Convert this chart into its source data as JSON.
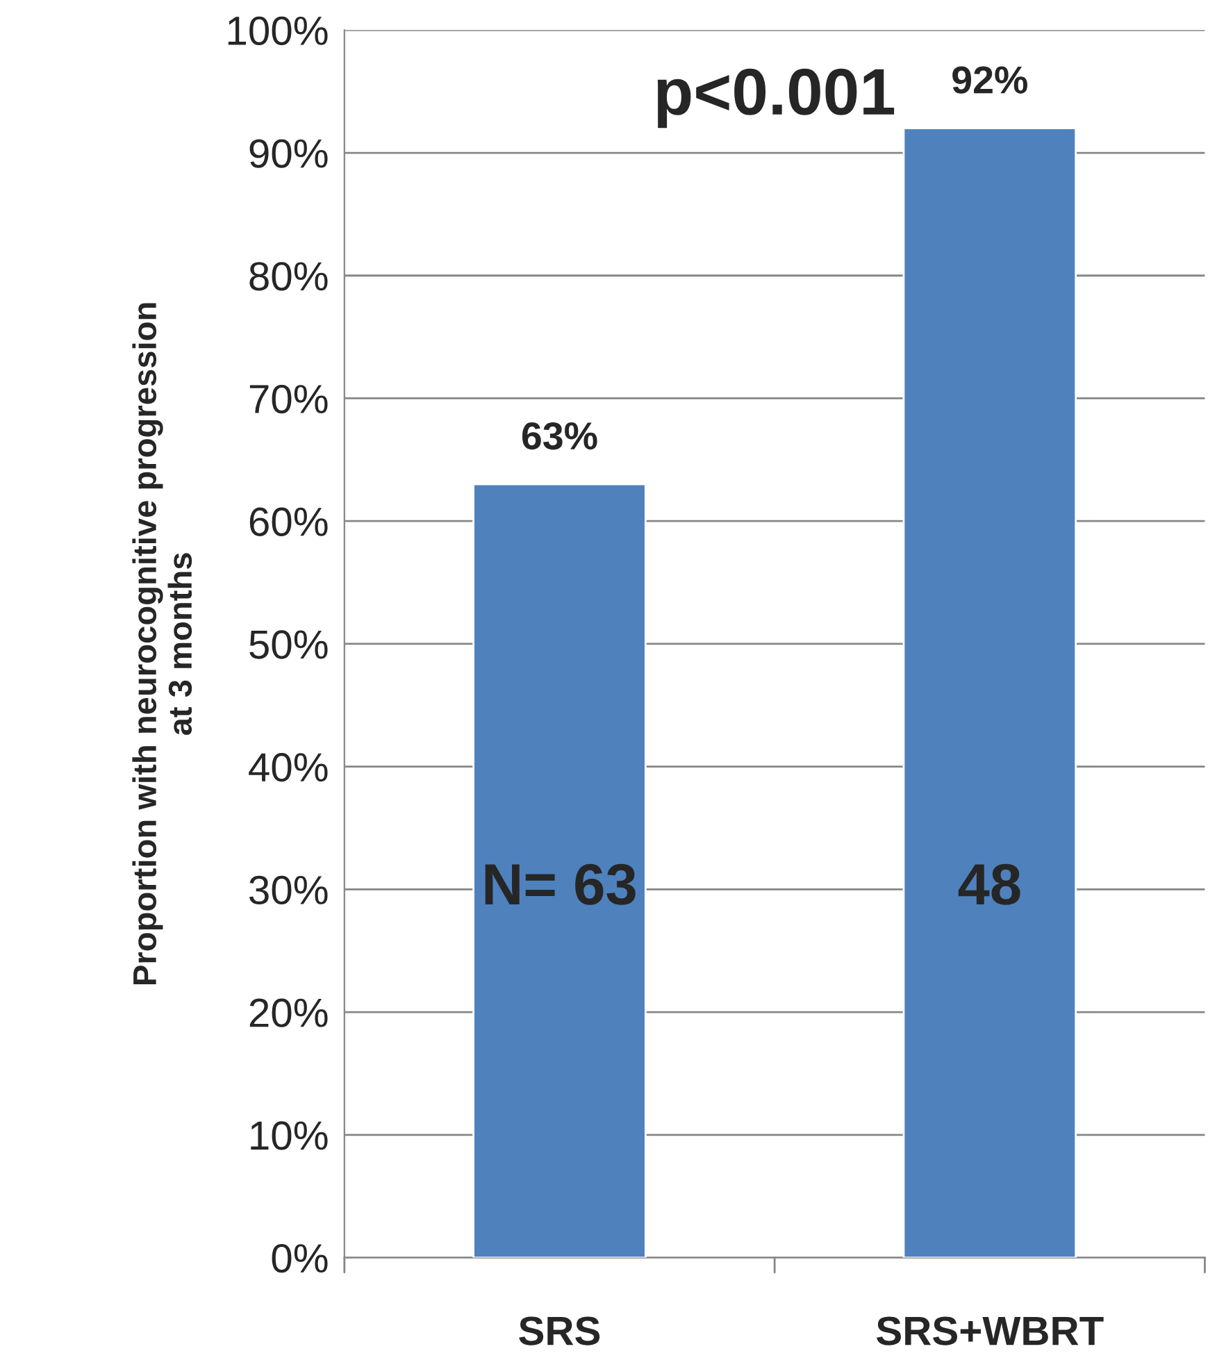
{
  "chart_data": {
    "type": "bar",
    "ylabel": "Proportion with neurocognitive progression\nat 3 months",
    "categories": [
      "SRS",
      "SRS+WBRT"
    ],
    "values": [
      63,
      92
    ],
    "value_labels": [
      "63%",
      "92%"
    ],
    "color": "#4f81bd",
    "ylim": [
      0,
      100
    ],
    "yticks": [
      {
        "value": 0,
        "label": "0%"
      },
      {
        "value": 10,
        "label": "10%"
      },
      {
        "value": 20,
        "label": "20%"
      },
      {
        "value": 30,
        "label": "30%"
      },
      {
        "value": 40,
        "label": "40%"
      },
      {
        "value": 50,
        "label": "50%"
      },
      {
        "value": 60,
        "label": "60%"
      },
      {
        "value": 70,
        "label": "70%"
      },
      {
        "value": 80,
        "label": "80%"
      },
      {
        "value": 90,
        "label": "90%"
      },
      {
        "value": 100,
        "label": "100%"
      }
    ],
    "grid": "y",
    "annotations": [
      "p<0.001",
      "N= 63",
      "48"
    ]
  }
}
